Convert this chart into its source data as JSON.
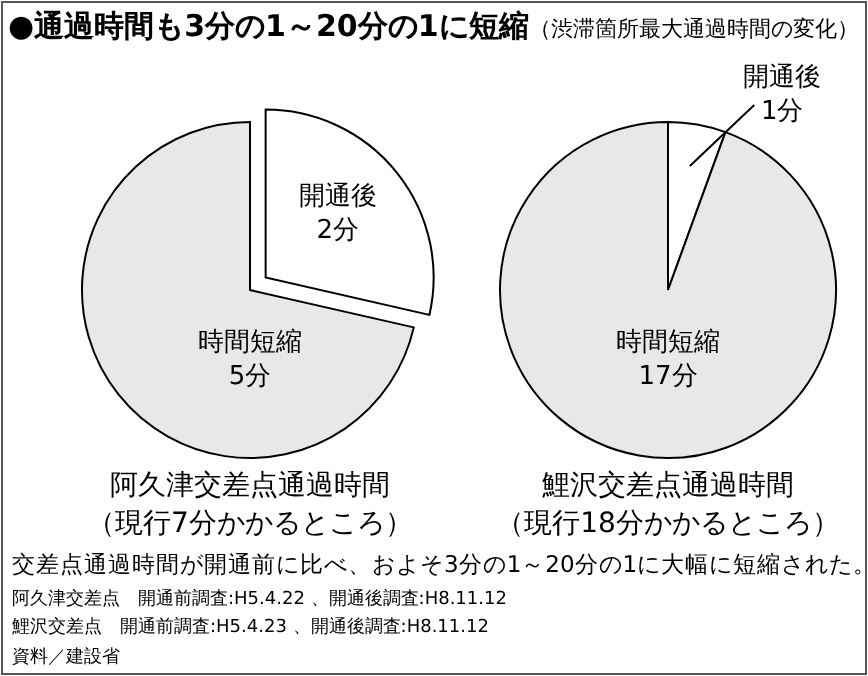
{
  "chart_data": [
    {
      "type": "pie",
      "title": "阿久津交差点通過時間",
      "subtitle": "（現行7分かかるところ）",
      "categories": [
        "開通後",
        "時間短縮"
      ],
      "values": [
        2,
        5
      ],
      "value_labels": [
        "2分",
        "5分"
      ],
      "colors": [
        "#ffffff",
        "#e8e8e8"
      ]
    },
    {
      "type": "pie",
      "title": "鯉沢交差点通過時間",
      "subtitle": "（現行18分かかるところ）",
      "categories": [
        "開通後",
        "時間短縮"
      ],
      "values": [
        1,
        17
      ],
      "value_labels": [
        "1分",
        "17分"
      ],
      "colors": [
        "#ffffff",
        "#e8e8e8"
      ]
    },
    {
      "type": "other",
      "title": "●通過時間も3分の1～20分の1に短縮",
      "subtitle": "（渋滞箇所最大通過時間の変化）",
      "annotations": [
        "交差点通過時間が開通前に比べ、およそ3分の1～20分の1に大幅に短縮された。",
        "阿久津交差点　開通前調査:H5.4.22 、開通後調査:H8.11.12",
        "鯉沢交差点　開通前調査:H5.4.23 、開通後調査:H8.11.12",
        "資料／建設省"
      ]
    }
  ]
}
